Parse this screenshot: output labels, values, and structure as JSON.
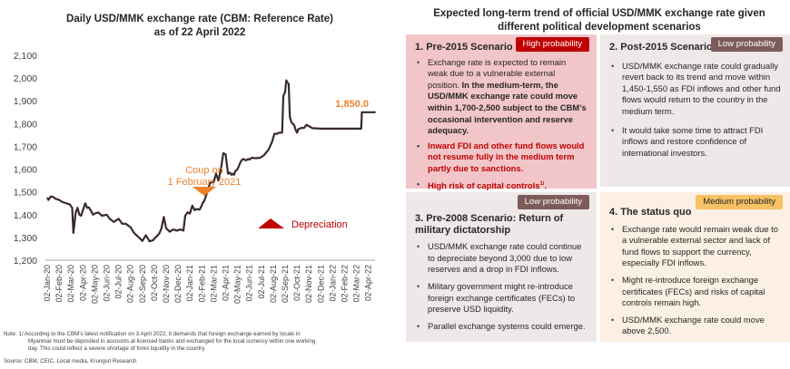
{
  "chart_data": {
    "type": "line",
    "title": "Daily USD/MMK exchange rate (CBM: Reference Rate)",
    "subtitle": "as of 22 April 2022",
    "xlabel": "",
    "ylabel": "",
    "ylim": [
      1200,
      2100
    ],
    "yticks": [
      1200,
      1300,
      1400,
      1500,
      1600,
      1700,
      1800,
      1900,
      2000,
      2100
    ],
    "ytick_labels": [
      "1,200",
      "1,300",
      "1,400",
      "1,500",
      "1,600",
      "1,700",
      "1,800",
      "1,900",
      "2,000",
      "2,100"
    ],
    "xtick_labels": [
      "02-Jan-20",
      "02-Feb-20",
      "02-Mar-20",
      "02-Apr-20",
      "02-May-20",
      "02-Jun-20",
      "02-Jul-20",
      "02-Aug-20",
      "02-Sep-20",
      "02-Oct-20",
      "02-Nov-20",
      "02-Dec-20",
      "02-Jan-21",
      "02-Feb-21",
      "02-Mar-21",
      "02-Apr-21",
      "02-May-21",
      "02-Jun-21",
      "02-Jul-21",
      "02-Aug-21",
      "02-Sep-21",
      "02-Oct-21",
      "02-Nov-21",
      "02-Dec-21",
      "02-Jan-22",
      "02-Feb-22",
      "02-Mar-22",
      "02-Apr-22"
    ],
    "grid": false,
    "line_color": "#3a2a2a",
    "series": [
      {
        "name": "USD/MMK",
        "x_month_index": [
          0,
          0.1,
          0.3,
          0.5,
          0.7,
          1.0,
          1.3,
          1.6,
          1.9,
          2.1,
          2.2,
          2.4,
          2.55,
          2.7,
          2.85,
          3.0,
          3.2,
          3.35,
          3.5,
          3.7,
          3.85,
          4.0,
          4.3,
          4.6,
          5.0,
          5.3,
          5.6,
          6.0,
          6.3,
          6.6,
          7.0,
          7.3,
          7.5,
          7.8,
          8.0,
          8.3,
          8.6,
          8.9,
          9.1,
          9.3,
          9.45,
          9.6,
          9.8,
          10.0,
          10.3,
          10.6,
          10.9,
          11.2,
          11.45,
          11.6,
          11.8,
          12.0,
          12.2,
          12.4,
          12.6,
          12.8,
          13.0,
          13.05,
          13.2,
          13.4,
          13.5,
          13.7,
          14.0,
          14.2,
          14.4,
          14.6,
          14.8,
          15.0,
          15.2,
          15.35,
          15.5,
          15.6,
          15.7,
          15.8,
          16.0,
          16.2,
          16.35,
          16.5,
          16.7,
          16.9,
          17.0,
          17.2,
          17.5,
          17.9,
          18.2,
          18.6,
          18.9,
          19.1,
          19.3,
          19.5,
          19.75,
          19.85,
          20.0,
          20.1,
          20.2,
          20.3,
          20.4,
          20.5,
          20.6,
          20.75,
          20.9,
          21.0,
          21.1,
          21.3,
          21.6,
          21.8,
          22.3,
          23.0,
          24.0,
          25.0,
          26.0,
          26.4,
          26.45,
          26.7,
          27.0,
          27.6
        ],
        "values": [
          1475,
          1465,
          1480,
          1478,
          1470,
          1465,
          1455,
          1450,
          1445,
          1430,
          1320,
          1410,
          1430,
          1400,
          1395,
          1420,
          1450,
          1430,
          1432,
          1415,
          1400,
          1405,
          1410,
          1395,
          1400,
          1380,
          1368,
          1382,
          1360,
          1360,
          1345,
          1320,
          1310,
          1295,
          1285,
          1310,
          1283,
          1288,
          1300,
          1310,
          1320,
          1340,
          1390,
          1340,
          1325,
          1335,
          1330,
          1335,
          1330,
          1395,
          1410,
          1405,
          1440,
          1420,
          1425,
          1422,
          1440,
          1450,
          1460,
          1490,
          1510,
          1540,
          1545,
          1580,
          1550,
          1600,
          1670,
          1665,
          1580,
          1585,
          1575,
          1580,
          1575,
          1590,
          1600,
          1625,
          1640,
          1645,
          1638,
          1645,
          1642,
          1650,
          1648,
          1650,
          1660,
          1685,
          1720,
          1755,
          1755,
          1760,
          1760,
          1920,
          1940,
          1990,
          1980,
          1975,
          1830,
          1810,
          1800,
          1795,
          1770,
          1760,
          1775,
          1780,
          1782,
          1795,
          1780,
          1778,
          1778,
          1778,
          1778,
          1778,
          1850,
          1850,
          1850,
          1850
        ]
      }
    ],
    "annotations": [
      {
        "text": "Coup on\n1 February 2021",
        "marker": "down-triangle",
        "color": "#f07f29"
      },
      {
        "text": "Depreciation",
        "marker": "up-triangle",
        "color": "#c00000"
      },
      {
        "text": "1,850.0",
        "color": "#f07f29",
        "position": "end-of-series"
      }
    ]
  },
  "chart_title_line1": "Daily USD/MMK exchange rate (CBM: Reference Rate)",
  "chart_title_line2": "as of 22 April 2022",
  "note": {
    "line1": "Note: 1/ According to the CBM’s latest notification on 3 April 2022, it demands that foreign exchange earned by locals in",
    "line2": "Myanmar must be deposited in accounts at licensed banks and exchanged for the local currency within one working",
    "line3": "day. This could reflect a severe shortage of forex liquidity in the country."
  },
  "source": "Source: CBM, CEIC, Local media, Krungsri Research",
  "right_title_line1": "Expected long-term trend of official USD/MMK exchange rate given",
  "right_title_line2": "different political development scenarios",
  "scenarios": [
    {
      "title": "1. Pre-2015 Scenario",
      "badge": "High probability",
      "badge_color": "#c00000",
      "bullets": [
        {
          "plain": "Exchange rate is expected to remain weak due to a vulnerable external position. ",
          "bold": "In the medium-term, the USD/MMK exchange rate could move within 1,700-2,500 subject to the CBM’s occasional intervention and reserve adequacy."
        },
        {
          "red": "Inward FDI and other fund flows would not resume fully in the medium term partly due to sanctions."
        },
        {
          "red": "High risk of capital controls",
          "sup": "1/",
          "tail": "."
        }
      ]
    },
    {
      "title": "2. Post-2015 Scenario",
      "badge": "Low probability",
      "badge_color": "#7e5b5b",
      "bullets": [
        "USD/MMK exchange rate could gradually revert back to its trend and move within 1,450-1,550 as FDI inflows and other fund flows would return to the country in the medium term.",
        "It would take some time to attract FDI inflows and restore confidence of international investors."
      ]
    },
    {
      "title": "3. Pre-2008 Scenario: Return of military dictatorship",
      "badge": "Low probability",
      "badge_color": "#7e5b5b",
      "bullets": [
        "USD/MMK exchange rate could continue to depreciate beyond 3,000 due to low reserves and a drop in FDI inflows.",
        "Military government might re-introduce foreign exchange certificates (FECs) to preserve USD liquidity.",
        "Parallel exchange systems could emerge."
      ]
    },
    {
      "title": "4. The status quo",
      "badge": "Medium probability",
      "badge_color": "#f7c165",
      "bullets": [
        "Exchange rate would remain weak due to a vulnerable external sector and lack of fund flows to support the currency, especially FDI inflows.",
        "Might re-introduce foreign exchange certificates (FECs) and risks of capital controls remain high.",
        "USD/MMK exchange rate could move above 2,500."
      ]
    }
  ]
}
